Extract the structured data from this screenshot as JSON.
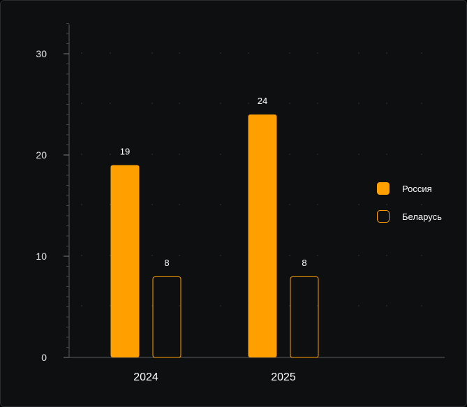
{
  "chart_data": {
    "type": "bar",
    "categories": [
      "2024",
      "2025"
    ],
    "series": [
      {
        "name": "Россия",
        "values": [
          19,
          24
        ],
        "style": "filled",
        "color": "#ff9f00"
      },
      {
        "name": "Беларусь",
        "values": [
          8,
          8
        ],
        "style": "outline",
        "color": "#ff9f00"
      }
    ],
    "ylim": [
      0,
      33
    ],
    "yticks": [
      0,
      10,
      20,
      30
    ],
    "grid": "dotted",
    "legend_placement": "right"
  },
  "colors": {
    "background": "#0e0f11",
    "accent": "#ff9f00",
    "axis": "#5a5d62",
    "text": "#ffffff"
  }
}
